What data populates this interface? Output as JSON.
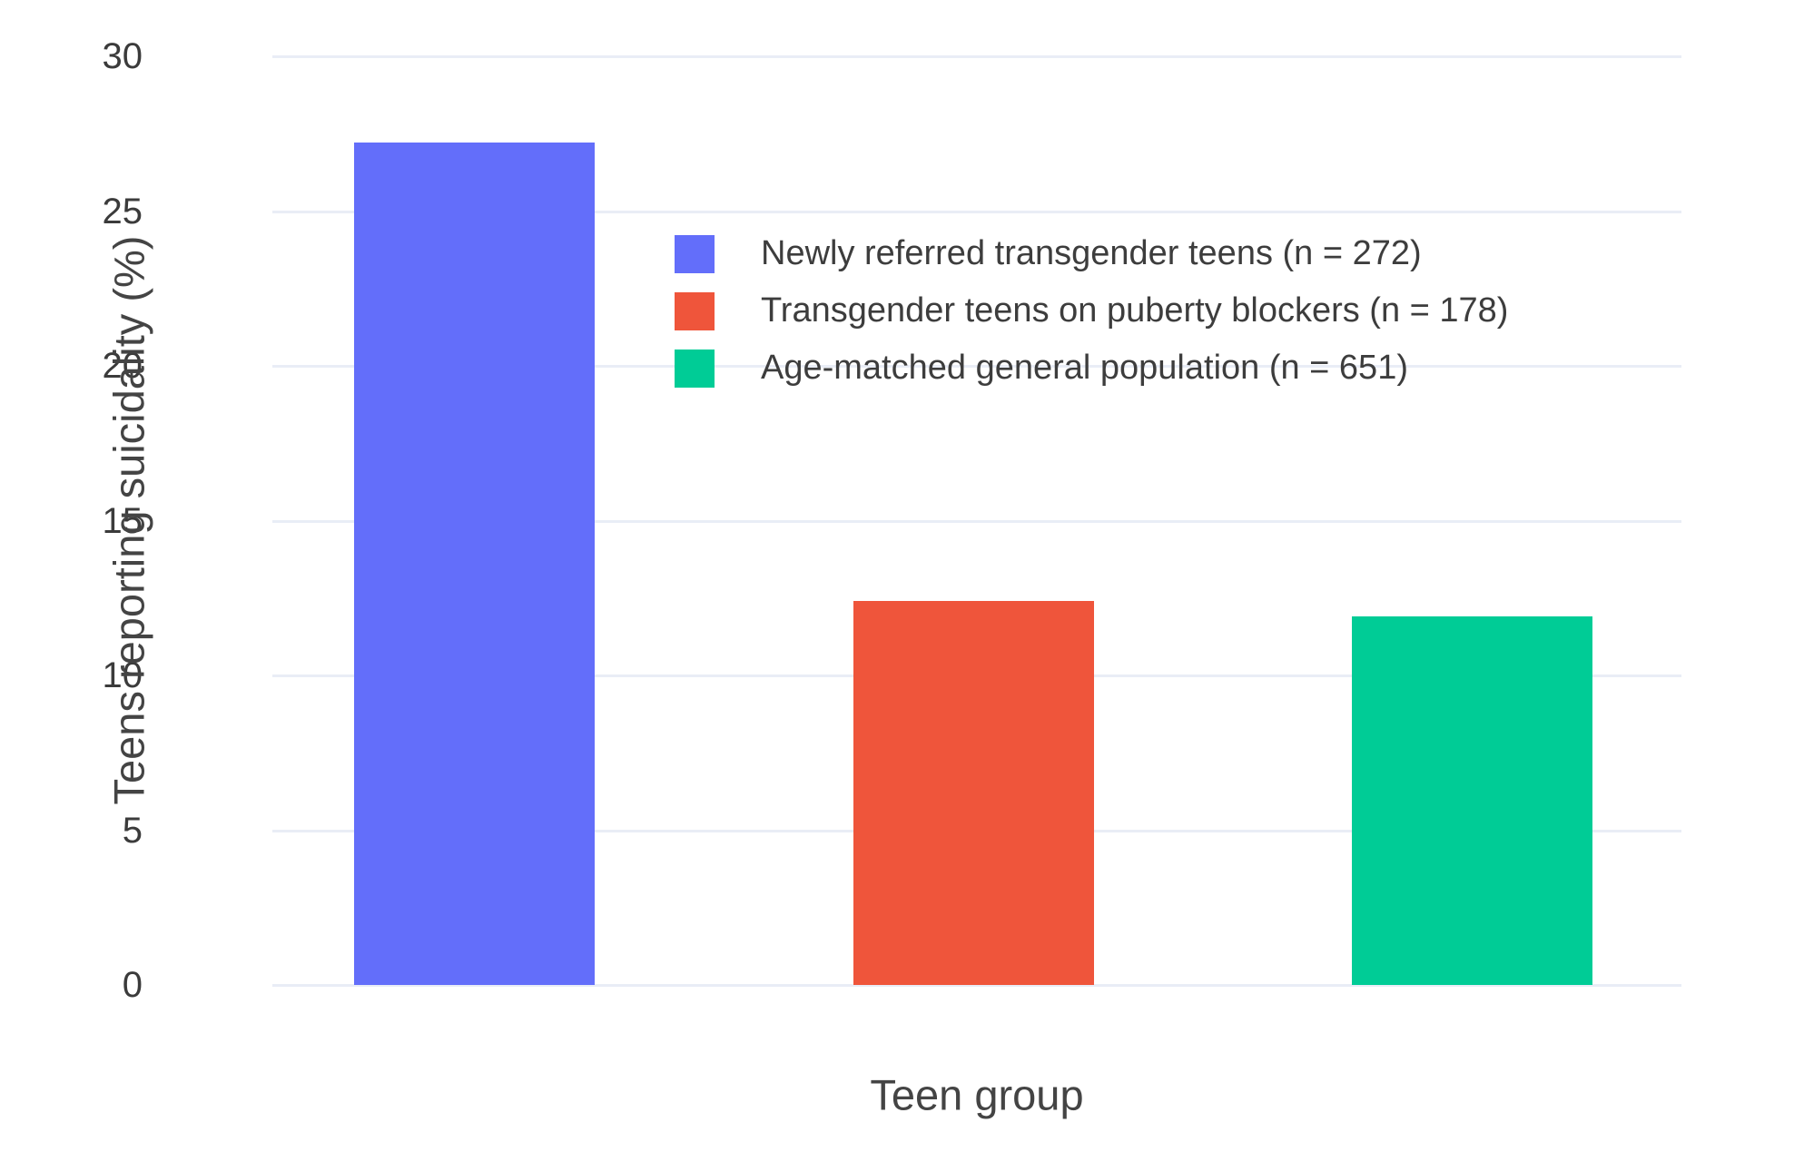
{
  "chart_data": {
    "type": "bar",
    "title": "",
    "xlabel": "Teen group",
    "ylabel": "Teens reporting suicidality (%)",
    "ylim": [
      0,
      30
    ],
    "yticks": [
      0,
      5,
      10,
      15,
      20,
      25,
      30
    ],
    "grid": true,
    "x_tick_labels": [
      "",
      "",
      ""
    ],
    "legend_position": "inside-top-center",
    "categories": [
      "Newly referred transgender teens (n = 272)",
      "Transgender teens on puberty blockers (n = 178)",
      "Age-matched general population (n = 651)"
    ],
    "values": [
      27.2,
      12.4,
      11.9
    ],
    "colors": [
      "#636EFA",
      "#EF553B",
      "#00CC96"
    ]
  }
}
